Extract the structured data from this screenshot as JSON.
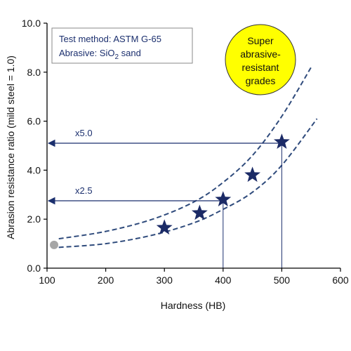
{
  "chart_data": {
    "type": "scatter",
    "title": "",
    "xlabel": "Hardness (HB)",
    "ylabel": "Abrasion resistance ratio (mild steel = 1.0)",
    "xlim": [
      100,
      600
    ],
    "ylim": [
      0,
      10
    ],
    "xticks": [
      "100",
      "200",
      "300",
      "400",
      "500",
      "600"
    ],
    "yticks": [
      "0.0",
      "2.0",
      "4.0",
      "6.0",
      "8.0",
      "10.0"
    ],
    "grid": false,
    "series": [
      {
        "marker": "star",
        "color": "#1b2a66",
        "x": [
          300,
          360,
          400,
          450,
          500
        ],
        "y": [
          1.65,
          2.25,
          2.8,
          3.8,
          5.15
        ]
      },
      {
        "marker": "circle",
        "color": "#a6a6a6",
        "x": [
          112
        ],
        "y": [
          0.95
        ]
      }
    ],
    "band_curves": [
      {
        "style": "dashed",
        "color": "#2f4b7c",
        "x": [
          120,
          200,
          280,
          350,
          400,
          450,
          500,
          550
        ],
        "y": [
          1.2,
          1.5,
          2.0,
          2.7,
          3.5,
          4.6,
          6.2,
          8.2
        ]
      },
      {
        "style": "dashed",
        "color": "#2f4b7c",
        "x": [
          120,
          200,
          280,
          350,
          400,
          450,
          500,
          560
        ],
        "y": [
          0.85,
          1.0,
          1.35,
          1.85,
          2.4,
          3.1,
          4.2,
          6.1
        ]
      }
    ],
    "reference_lines": [
      {
        "x": 400,
        "y": 2.75,
        "label": "x2.5"
      },
      {
        "x": 500,
        "y": 5.1,
        "label": "x5.0"
      }
    ],
    "legend_box": {
      "lines": [
        {
          "text": "Test method: ASTM G-65"
        },
        {
          "text": "Abrasive: SiO",
          "subscript": "2",
          "suffix": " sand"
        }
      ]
    },
    "badge": {
      "lines": [
        "Super",
        "abrasive-",
        "resistant",
        "grades"
      ],
      "fill": "#ffff00"
    },
    "colors": {
      "axis": "#000000",
      "reference": "#1b2f6e",
      "text": "#1b2f6e"
    }
  }
}
